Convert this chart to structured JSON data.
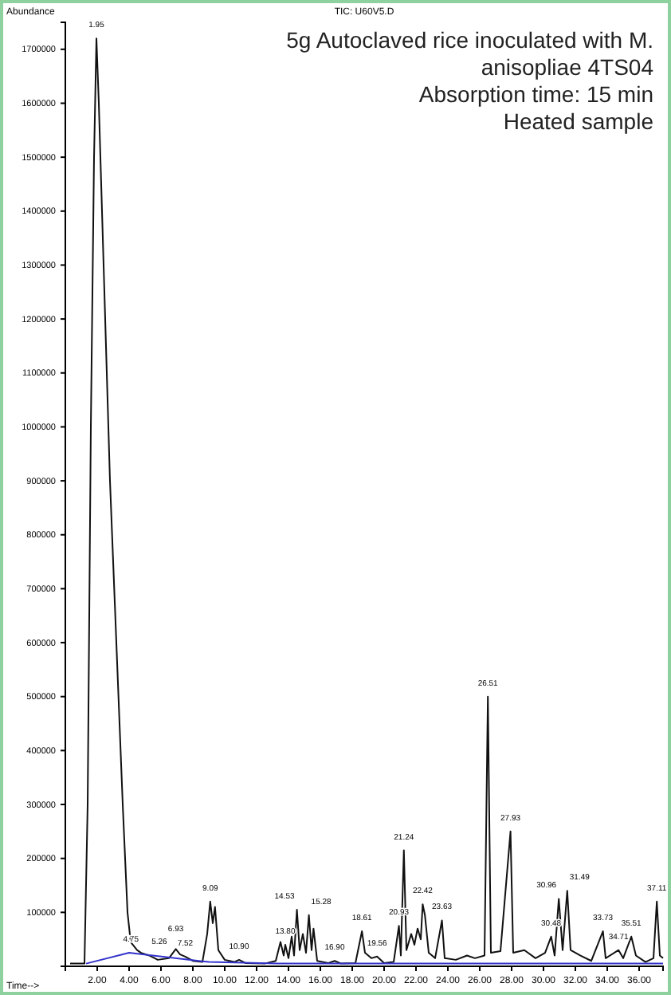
{
  "chart_data": {
    "type": "line",
    "title": "TIC: U60V5.D",
    "xlabel": "Time-->",
    "ylabel": "Abundance",
    "xlim": [
      0,
      37.5
    ],
    "ylim": [
      0,
      1750000
    ],
    "xticks": [
      {
        "value": 2,
        "label": "2.00"
      },
      {
        "value": 4,
        "label": "4.00"
      },
      {
        "value": 6,
        "label": "6.00"
      },
      {
        "value": 8,
        "label": "8.00"
      },
      {
        "value": 10,
        "label": "10.00"
      },
      {
        "value": 12,
        "label": "12.00"
      },
      {
        "value": 14,
        "label": "14.00"
      },
      {
        "value": 16,
        "label": "16.00"
      },
      {
        "value": 18,
        "label": "18.00"
      },
      {
        "value": 20,
        "label": "20.00"
      },
      {
        "value": 22,
        "label": "22.00"
      },
      {
        "value": 24,
        "label": "24.00"
      },
      {
        "value": 26,
        "label": "26.00"
      },
      {
        "value": 28,
        "label": "28.00"
      },
      {
        "value": 30,
        "label": "30.00"
      },
      {
        "value": 32,
        "label": "32.00"
      },
      {
        "value": 34,
        "label": "34.00"
      },
      {
        "value": 36,
        "label": "36.00"
      }
    ],
    "yticks": [
      100000,
      200000,
      300000,
      400000,
      500000,
      600000,
      700000,
      800000,
      900000,
      1000000,
      1100000,
      1200000,
      1300000,
      1400000,
      1500000,
      1600000,
      1700000
    ],
    "grid": false,
    "marker": "none",
    "line_style": "solid",
    "series": [
      {
        "color": "#111111",
        "x": [
          0.3,
          1.2,
          1.4,
          1.6,
          1.8,
          1.95,
          2.1,
          2.4,
          2.8,
          3.2,
          3.6,
          3.9,
          4.1,
          4.5,
          4.75,
          5.26,
          5.8,
          6.5,
          6.93,
          7.2,
          7.52,
          8.0,
          8.6,
          8.9,
          9.09,
          9.25,
          9.39,
          9.6,
          10.0,
          10.6,
          10.9,
          11.3,
          12.5,
          13.2,
          13.5,
          13.7,
          13.8,
          14.0,
          14.2,
          14.35,
          14.53,
          14.7,
          14.9,
          15.1,
          15.28,
          15.45,
          15.57,
          15.8,
          16.5,
          16.9,
          17.3,
          18.2,
          18.61,
          18.8,
          19.2,
          19.56,
          20.0,
          20.6,
          20.93,
          21.05,
          21.24,
          21.4,
          21.7,
          21.9,
          22.1,
          22.3,
          22.42,
          22.56,
          22.8,
          23.2,
          23.63,
          23.8,
          24.5,
          25.2,
          25.7,
          26.3,
          26.51,
          26.7,
          27.3,
          27.93,
          28.1,
          28.8,
          29.5,
          30.1,
          30.48,
          30.7,
          30.96,
          31.2,
          31.49,
          31.7,
          32.3,
          33.0,
          33.73,
          33.9,
          34.71,
          35.0,
          35.51,
          35.8,
          36.4,
          36.9,
          37.11,
          37.3,
          37.5
        ],
        "values": [
          5000,
          5000,
          300000,
          1000000,
          1500000,
          1720000,
          1600000,
          1300000,
          900000,
          600000,
          300000,
          100000,
          45000,
          30000,
          25000,
          20000,
          12000,
          15000,
          32000,
          22000,
          18000,
          10000,
          8000,
          60000,
          120000,
          80000,
          110000,
          30000,
          12000,
          8000,
          12000,
          6000,
          5000,
          10000,
          45000,
          20000,
          40000,
          15000,
          55000,
          20000,
          105000,
          30000,
          60000,
          25000,
          95000,
          30000,
          70000,
          10000,
          6000,
          10000,
          5000,
          6000,
          65000,
          25000,
          15000,
          18000,
          6000,
          8000,
          75000,
          20000,
          215000,
          30000,
          60000,
          40000,
          70000,
          50000,
          115000,
          95000,
          25000,
          15000,
          85000,
          15000,
          12000,
          20000,
          15000,
          20000,
          500000,
          25000,
          28000,
          250000,
          25000,
          30000,
          15000,
          25000,
          55000,
          20000,
          125000,
          30000,
          140000,
          30000,
          20000,
          10000,
          65000,
          15000,
          30000,
          15000,
          55000,
          20000,
          8000,
          15000,
          120000,
          20000,
          15000
        ]
      },
      {
        "color": "#3333cc",
        "x": [
          1.3,
          4.0,
          9.0,
          13.3,
          37.5
        ],
        "values": [
          5000,
          25000,
          8000,
          5000,
          5000
        ]
      }
    ],
    "annotations": [
      "5g Autoclaved rice inoculated with M.",
      "anisopliae 4TS04",
      "Absorption time: 15 min",
      "Heated sample",
      {
        "text": "1.95",
        "x": 1.95,
        "y": 1720000
      },
      {
        "text": "4.75",
        "x": 4.75,
        "y": 25000
      },
      {
        "text": "5.26",
        "x": 5.26,
        "y": 20000
      },
      {
        "text": "6.93",
        "x": 6.93,
        "y": 32000
      },
      {
        "text": "7.52",
        "x": 7.52,
        "y": 18000
      },
      {
        "text": "9.09",
        "x": 9.09,
        "y": 120000
      },
      {
        "text": "10.90",
        "x": 10.9,
        "y": 12000
      },
      {
        "text": "13.80",
        "x": 13.8,
        "y": 40000
      },
      {
        "text": "14.53",
        "x": 14.53,
        "y": 105000
      },
      {
        "text": "15.28",
        "x": 15.28,
        "y": 95000
      },
      {
        "text": "16.90",
        "x": 16.9,
        "y": 10000
      },
      {
        "text": "18.61",
        "x": 18.61,
        "y": 65000
      },
      {
        "text": "19.56",
        "x": 19.56,
        "y": 18000
      },
      {
        "text": "20.93",
        "x": 20.93,
        "y": 75000
      },
      {
        "text": "21.24",
        "x": 21.24,
        "y": 215000
      },
      {
        "text": "22.42",
        "x": 22.42,
        "y": 115000
      },
      {
        "text": "23.63",
        "x": 23.63,
        "y": 85000
      },
      {
        "text": "26.51",
        "x": 26.51,
        "y": 500000
      },
      {
        "text": "27.93",
        "x": 27.93,
        "y": 250000
      },
      {
        "text": "30.48",
        "x": 30.48,
        "y": 55000
      },
      {
        "text": "30.96",
        "x": 30.96,
        "y": 125000
      },
      {
        "text": "31.49",
        "x": 31.49,
        "y": 140000
      },
      {
        "text": "33.73",
        "x": 33.73,
        "y": 65000
      },
      {
        "text": "34.71",
        "x": 34.71,
        "y": 30000
      },
      {
        "text": "35.51",
        "x": 35.51,
        "y": 55000
      },
      {
        "text": "37.11",
        "x": 37.11,
        "y": 120000
      }
    ]
  }
}
